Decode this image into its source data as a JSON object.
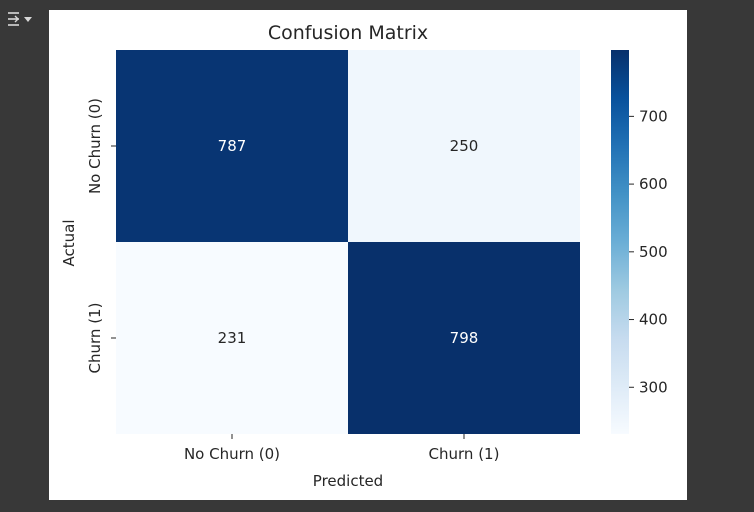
{
  "output_toggle": {
    "icon": "collapse-output-icon"
  },
  "colors": {
    "page_bg": "#383838",
    "figure_bg": "#ffffff",
    "cmap": [
      "#f7fbff",
      "#deebf7",
      "#c6dbef",
      "#9ecae1",
      "#6baed6",
      "#4292c6",
      "#2171b5",
      "#08519c",
      "#08306b"
    ],
    "text_dark": "#262626",
    "text_light": "#ffffff"
  },
  "chart_data": {
    "type": "heatmap",
    "title": "Confusion Matrix",
    "xlabel": "Predicted",
    "ylabel": "Actual",
    "x_categories": [
      "No Churn (0)",
      "Churn (1)"
    ],
    "y_categories": [
      "No Churn (0)",
      "Churn (1)"
    ],
    "values": [
      [
        787,
        250
      ],
      [
        231,
        798
      ]
    ],
    "colormap": "Blues",
    "color_range": [
      231,
      798
    ],
    "colorbar_ticks": [
      "300",
      "400",
      "500",
      "600",
      "700"
    ]
  }
}
